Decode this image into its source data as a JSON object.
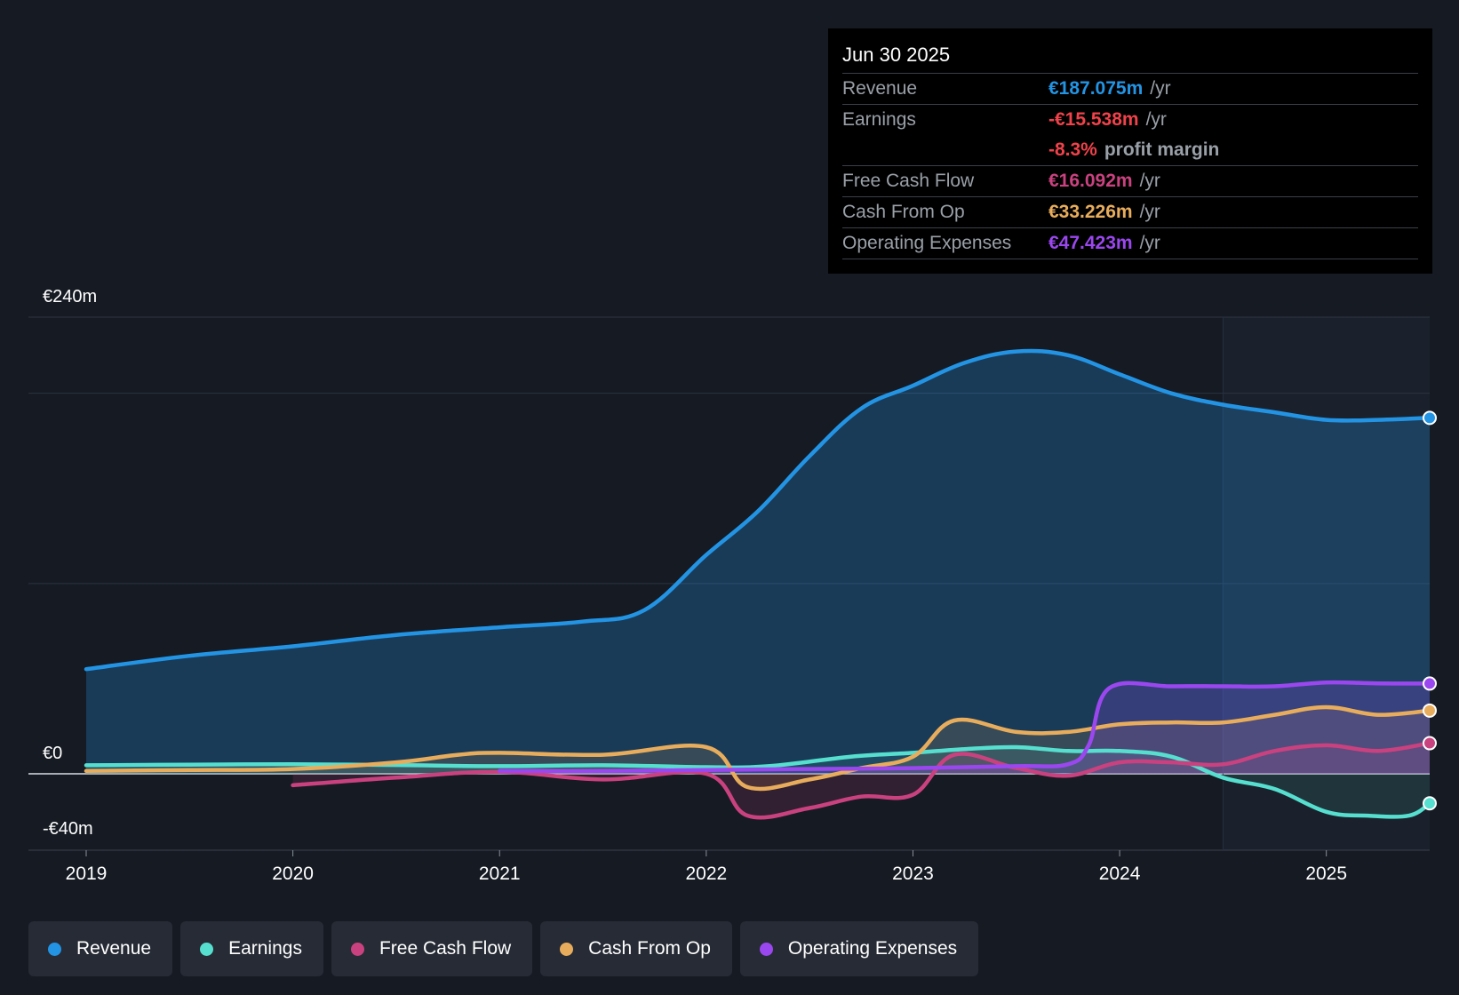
{
  "tooltip": {
    "date": "Jun 30 2025",
    "revenue": {
      "label": "Revenue",
      "value": "€187.075m",
      "unit": "/yr"
    },
    "earnings": {
      "label": "Earnings",
      "value": "-€15.538m",
      "unit": "/yr"
    },
    "margin": {
      "value": "-8.3%",
      "unit": "profit margin"
    },
    "fcf": {
      "label": "Free Cash Flow",
      "value": "€16.092m",
      "unit": "/yr"
    },
    "cfo": {
      "label": "Cash From Op",
      "value": "€33.226m",
      "unit": "/yr"
    },
    "opex": {
      "label": "Operating Expenses",
      "value": "€47.423m",
      "unit": "/yr"
    }
  },
  "legend": [
    {
      "label": "Revenue",
      "color": "#2394e4"
    },
    {
      "label": "Earnings",
      "color": "#56dfcf"
    },
    {
      "label": "Free Cash Flow",
      "color": "#c9427f"
    },
    {
      "label": "Cash From Op",
      "color": "#e8ad5c"
    },
    {
      "label": "Operating Expenses",
      "color": "#9b47f0"
    }
  ],
  "colors": {
    "revenue": "#2394e4",
    "earnings": "#56dfcf",
    "fcf": "#c9427f",
    "cfo": "#e8ad5c",
    "opex": "#9b47f0",
    "negative": "#f0424a"
  },
  "chart_data": {
    "type": "line",
    "title": "",
    "ylabel_top": "€240m",
    "ylabel_zero": "€0",
    "ylabel_bottom": "-€40m",
    "ylim": [
      -40,
      240
    ],
    "xlim": [
      2019.0,
      2025.5
    ],
    "x_ticks": [
      "2019",
      "2020",
      "2021",
      "2022",
      "2023",
      "2024",
      "2025"
    ],
    "gridlines": [
      240,
      200,
      100,
      0
    ],
    "forecast_start": 2024.5,
    "series": [
      {
        "name": "Revenue",
        "key": "revenue",
        "x": [
          2019.0,
          2019.5,
          2020.0,
          2020.5,
          2021.0,
          2021.4,
          2021.7,
          2022.0,
          2022.25,
          2022.5,
          2022.75,
          2023.0,
          2023.25,
          2023.5,
          2023.75,
          2024.0,
          2024.25,
          2024.5,
          2024.75,
          2025.0,
          2025.25,
          2025.5
        ],
        "values": [
          55,
          62,
          67,
          73,
          77,
          80,
          86,
          115,
          138,
          167,
          192,
          204,
          216,
          222,
          220,
          210,
          200,
          194,
          190,
          186,
          186,
          187.075
        ]
      },
      {
        "name": "Earnings",
        "key": "earnings",
        "x": [
          2019.0,
          2019.5,
          2020.0,
          2020.5,
          2021.0,
          2021.5,
          2022.0,
          2022.3,
          2022.7,
          2023.0,
          2023.25,
          2023.5,
          2023.75,
          2024.0,
          2024.25,
          2024.5,
          2024.75,
          2025.0,
          2025.2,
          2025.4,
          2025.5
        ],
        "values": [
          4.5,
          4.8,
          5,
          4.6,
          4,
          4.5,
          3.5,
          4,
          9,
          11,
          13,
          14,
          12,
          12,
          9,
          -2,
          -8,
          -20,
          -22,
          -22,
          -15.538
        ]
      },
      {
        "name": "Free Cash Flow",
        "key": "fcf",
        "x": [
          2020.0,
          2020.5,
          2021.0,
          2021.5,
          2022.0,
          2022.2,
          2022.5,
          2022.75,
          2023.0,
          2023.2,
          2023.5,
          2023.75,
          2024.0,
          2024.25,
          2024.5,
          2024.75,
          2025.0,
          2025.25,
          2025.5
        ],
        "values": [
          -6,
          -2,
          1,
          -3,
          0,
          -22,
          -18,
          -12,
          -11,
          10,
          3,
          -1,
          6,
          6,
          5,
          12,
          15,
          12,
          16.092
        ]
      },
      {
        "name": "Cash From Op",
        "key": "cfo",
        "x": [
          2019.0,
          2019.5,
          2020.0,
          2020.5,
          2020.8,
          2021.0,
          2021.5,
          2022.0,
          2022.2,
          2022.5,
          2022.75,
          2023.0,
          2023.2,
          2023.5,
          2023.75,
          2024.0,
          2024.25,
          2024.5,
          2024.75,
          2025.0,
          2025.25,
          2025.5
        ],
        "values": [
          1.5,
          2,
          2.5,
          6,
          10,
          11,
          10,
          14,
          -7,
          -3,
          3,
          9,
          28,
          22,
          22,
          26,
          27,
          27,
          31,
          35,
          31,
          33.226
        ]
      },
      {
        "name": "Operating Expenses",
        "key": "opex",
        "x": [
          2021.0,
          2021.5,
          2022.0,
          2022.5,
          2023.0,
          2023.5,
          2023.75,
          2023.85,
          2023.95,
          2024.25,
          2024.5,
          2024.75,
          2025.0,
          2025.25,
          2025.5
        ],
        "values": [
          1.5,
          1.5,
          2,
          2.5,
          3,
          4,
          5,
          15,
          45,
          46,
          46,
          46,
          48,
          47.5,
          47.423
        ]
      }
    ]
  }
}
